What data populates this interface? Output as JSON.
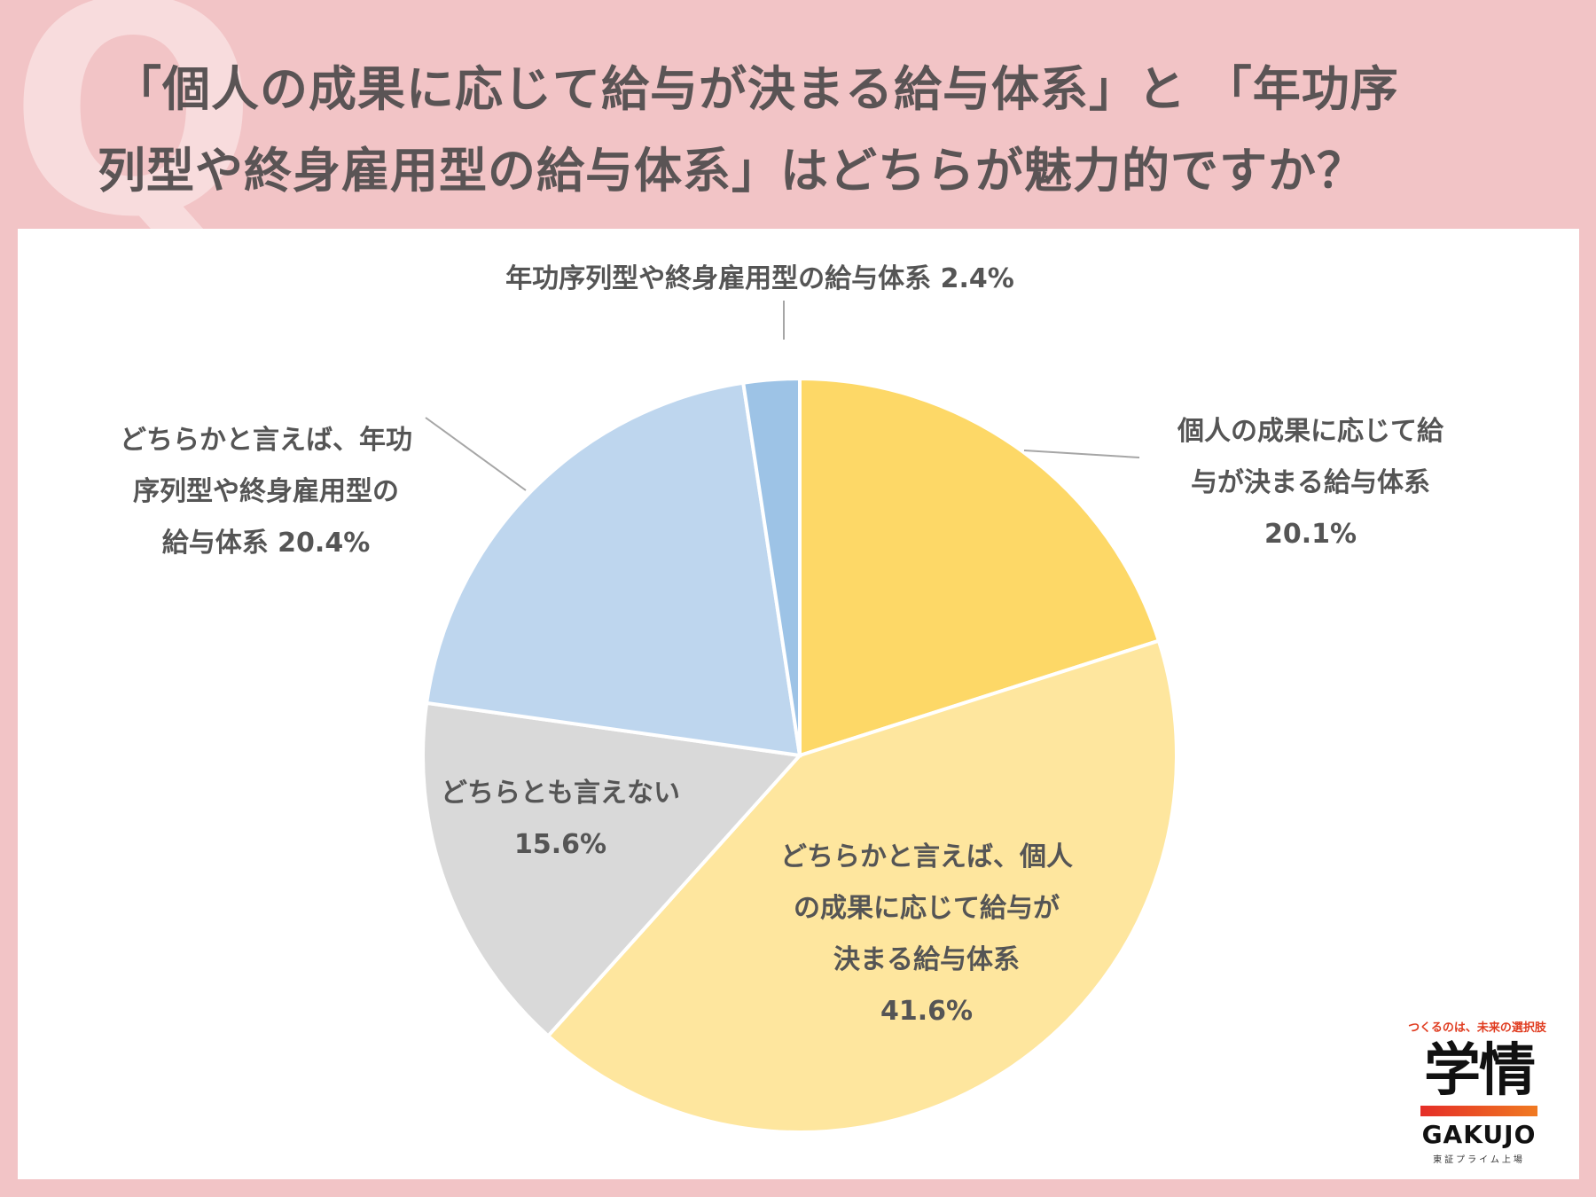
{
  "header": {
    "q_mark": "Q",
    "question_line1": "「個人の成果に応じて給与が決まる給与体系」と 「年功序",
    "question_line2": "列型や終身雇用型の給与体系」はどちらが魅力的ですか？"
  },
  "chart_data": {
    "type": "pie",
    "start_angle_deg": 0,
    "direction": "clockwise",
    "slices": [
      {
        "label_lines": [
          "個人の成果に応じて給",
          "与が決まる給与体系",
          "20.1%"
        ],
        "value": 20.1,
        "color": "#fdd867"
      },
      {
        "label_lines": [
          "どちらかと言えば、個人",
          "の成果に応じて給与が",
          "決まる給与体系",
          "41.6%"
        ],
        "value": 41.6,
        "color": "#fee69e"
      },
      {
        "label_lines": [
          "どちらとも言えない",
          "15.6%"
        ],
        "value": 15.6,
        "color": "#d9d9d9"
      },
      {
        "label_lines": [
          "どちらかと言えば、年功",
          "序列型や終身雇用型の",
          "給与体系 20.4%"
        ],
        "value": 20.4,
        "color": "#bed6ee"
      },
      {
        "label_lines": [
          "年功序列型や終身雇用型の給与体系 2.4%"
        ],
        "value": 2.4,
        "color": "#9dc3e6"
      }
    ]
  },
  "logo": {
    "tagline": "つくるのは、未来の選択肢",
    "kanji": "学情",
    "english": "GAKUJO",
    "subtitle": "東証プライム上場"
  }
}
